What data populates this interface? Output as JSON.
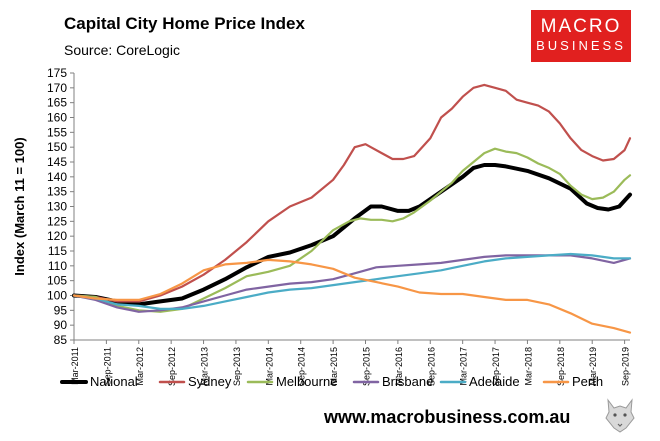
{
  "header": {
    "title": "Capital City Home Price Index",
    "source": "Source: CoreLogic"
  },
  "logo": {
    "line1": "MACRO",
    "line2": "BUSINESS"
  },
  "footer": {
    "url": "www.macrobusiness.com.au"
  },
  "colors": {
    "National": "#000000",
    "Sydney": "#c0504d",
    "Melbourne": "#9bbb59",
    "Brisbane": "#8064a2",
    "Adelaide": "#4bacc6",
    "Perth": "#f79646",
    "brand": "#e1201f"
  },
  "chart_data": {
    "type": "line",
    "title": "Capital City Home Price Index",
    "subtitle": "Source: CoreLogic",
    "ylabel": "Index (March 11 = 100)",
    "xlabel": "",
    "ylim": [
      85,
      175
    ],
    "yticks": [
      85,
      90,
      95,
      100,
      105,
      110,
      115,
      120,
      125,
      130,
      135,
      140,
      145,
      150,
      155,
      160,
      165,
      170,
      175
    ],
    "xlim": [
      0,
      103
    ],
    "xticks": [
      {
        "label": "Mar-2011",
        "x": 0
      },
      {
        "label": "Sep-2011",
        "x": 6
      },
      {
        "label": "Mar-2012",
        "x": 12
      },
      {
        "label": "Sep-2012",
        "x": 18
      },
      {
        "label": "Mar-2013",
        "x": 24
      },
      {
        "label": "Sep-2013",
        "x": 30
      },
      {
        "label": "Mar-2014",
        "x": 36
      },
      {
        "label": "Sep-2014",
        "x": 42
      },
      {
        "label": "Mar-2015",
        "x": 48
      },
      {
        "label": "Sep-2015",
        "x": 54
      },
      {
        "label": "Mar-2016",
        "x": 60
      },
      {
        "label": "Sep-2016",
        "x": 66
      },
      {
        "label": "Mar-2017",
        "x": 72
      },
      {
        "label": "Sep-2017",
        "x": 78
      },
      {
        "label": "Mar-2018",
        "x": 84
      },
      {
        "label": "Sep-2018",
        "x": 90
      },
      {
        "label": "Mar-2019",
        "x": 96
      },
      {
        "label": "Sep-2019",
        "x": 102
      }
    ],
    "grid": false,
    "legend_position": "bottom",
    "series": [
      {
        "name": "National",
        "x": [
          0,
          4,
          8,
          12,
          16,
          20,
          24,
          28,
          32,
          36,
          40,
          44,
          48,
          52,
          55,
          57,
          60,
          62,
          64,
          68,
          72,
          74,
          76,
          78,
          80,
          84,
          88,
          92,
          95,
          97,
          99,
          101,
          103
        ],
        "values": [
          100,
          99.5,
          98,
          97,
          98,
          99,
          102,
          105.5,
          109.5,
          113,
          114.5,
          117,
          120,
          126,
          130,
          130,
          128.5,
          128.5,
          130,
          135,
          140,
          143,
          144,
          144,
          143.5,
          142,
          139.5,
          136,
          131,
          129.5,
          129,
          130,
          134
        ]
      },
      {
        "name": "Sydney",
        "x": [
          0,
          4,
          8,
          12,
          16,
          20,
          24,
          28,
          32,
          36,
          40,
          44,
          48,
          50,
          52,
          54,
          55,
          57,
          59,
          61,
          63,
          66,
          68,
          70,
          72,
          74,
          76,
          78,
          80,
          82,
          84,
          86,
          88,
          90,
          92,
          94,
          96,
          98,
          100,
          102,
          103
        ],
        "values": [
          100,
          99.5,
          98,
          98,
          100,
          103,
          107,
          112,
          118,
          125,
          130,
          133,
          139,
          144,
          150,
          151,
          150,
          148,
          146,
          146,
          147,
          153,
          160,
          163,
          167,
          170,
          171,
          170,
          169,
          166,
          165,
          164,
          162,
          158,
          153,
          149,
          147,
          145.5,
          146,
          149,
          153
        ]
      },
      {
        "name": "Melbourne",
        "x": [
          0,
          4,
          8,
          12,
          16,
          20,
          24,
          28,
          32,
          36,
          40,
          44,
          48,
          51,
          53,
          55,
          57,
          59,
          61,
          63,
          66,
          68,
          70,
          72,
          74,
          76,
          78,
          80,
          82,
          84,
          86,
          88,
          90,
          92,
          94,
          96,
          98,
          100,
          102,
          103
        ],
        "values": [
          100,
          99.5,
          96.5,
          95,
          94.5,
          95.5,
          99,
          102.5,
          106.5,
          108,
          110,
          115,
          122,
          125,
          126,
          125.5,
          125.5,
          125,
          126,
          128,
          132,
          135,
          138,
          142,
          145,
          148,
          149.5,
          148.5,
          148,
          146.5,
          144.5,
          143,
          141,
          137,
          134,
          132.5,
          133,
          135,
          139,
          140.5
        ]
      },
      {
        "name": "Brisbane",
        "x": [
          0,
          4,
          8,
          12,
          16,
          20,
          24,
          28,
          32,
          36,
          40,
          44,
          48,
          52,
          56,
          60,
          64,
          68,
          72,
          76,
          80,
          84,
          88,
          92,
          96,
          100,
          103
        ],
        "values": [
          100,
          98.5,
          96,
          94.5,
          95,
          96,
          98,
          100,
          102,
          103,
          104,
          104.5,
          105.5,
          107.5,
          109.5,
          110,
          110.5,
          111,
          112,
          113,
          113.5,
          113.5,
          113.5,
          113.5,
          112.5,
          111,
          112.5
        ]
      },
      {
        "name": "Adelaide",
        "x": [
          0,
          4,
          8,
          12,
          16,
          20,
          24,
          28,
          32,
          36,
          40,
          44,
          48,
          52,
          56,
          60,
          64,
          68,
          72,
          76,
          80,
          84,
          88,
          92,
          96,
          100,
          103
        ],
        "values": [
          100,
          99,
          97,
          96.5,
          95.5,
          95.5,
          96.5,
          98,
          99.5,
          101,
          102,
          102.5,
          103.5,
          104.5,
          105.5,
          106.5,
          107.5,
          108.5,
          110,
          111.5,
          112.5,
          113,
          113.5,
          114,
          113.5,
          112.5,
          112.5
        ]
      },
      {
        "name": "Perth",
        "x": [
          0,
          4,
          8,
          12,
          16,
          20,
          24,
          28,
          32,
          36,
          40,
          44,
          48,
          52,
          56,
          60,
          64,
          68,
          72,
          76,
          80,
          84,
          88,
          92,
          96,
          100,
          103
        ],
        "values": [
          100,
          99,
          98.5,
          98.5,
          100.5,
          104,
          108.5,
          110.5,
          111,
          112,
          111.5,
          110.5,
          109,
          106,
          104.5,
          103,
          101,
          100.5,
          100.5,
          99.5,
          98.5,
          98.5,
          97,
          94,
          90.5,
          89,
          87.5
        ]
      }
    ]
  }
}
